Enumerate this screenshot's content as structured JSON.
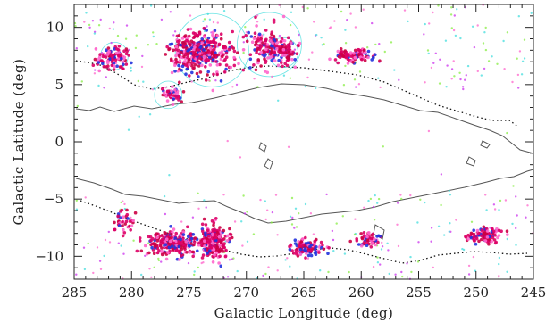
{
  "chart_data": {
    "type": "scatter",
    "title": "",
    "xlabel": "Galactic Longitude (deg)",
    "ylabel": "Galactic Latitude (deg)",
    "xlim": [
      285,
      245
    ],
    "ylim": [
      -12,
      12
    ],
    "x_ticks": [
      "285",
      "280",
      "275",
      "270",
      "265",
      "260",
      "255",
      "250",
      "245"
    ],
    "y_ticks": [
      "10",
      "5",
      "0",
      "−5",
      "−10"
    ],
    "grid": false,
    "legend": "none",
    "colors": {
      "dense_a": "#dd0066",
      "dense_b": "#cc0044",
      "dense_c": "#2233dd",
      "sparse_a": "#cc33ee",
      "sparse_b": "#88ee44",
      "sparse_c": "#44dddd",
      "sparse_d": "#ff66cc",
      "contour": "#555555",
      "circle": "#44dddd"
    },
    "clusters": [
      {
        "center": [
          281.5,
          7.3
        ],
        "spread": [
          1.2,
          1.0
        ],
        "count": 110
      },
      {
        "center": [
          276.5,
          4.2
        ],
        "spread": [
          0.9,
          0.6
        ],
        "count": 45
      },
      {
        "center": [
          274.0,
          7.8
        ],
        "spread": [
          2.4,
          1.6
        ],
        "count": 380
      },
      {
        "center": [
          268.0,
          8.2
        ],
        "spread": [
          1.8,
          1.5
        ],
        "count": 160
      },
      {
        "center": [
          266.5,
          7.8
        ],
        "spread": [
          0.6,
          0.9
        ],
        "count": 60
      },
      {
        "center": [
          260.5,
          7.5
        ],
        "spread": [
          1.5,
          0.5
        ],
        "count": 110
      },
      {
        "center": [
          280.8,
          -7.0
        ],
        "spread": [
          0.8,
          0.9
        ],
        "count": 40
      },
      {
        "center": [
          276.5,
          -8.8
        ],
        "spread": [
          2.0,
          1.0
        ],
        "count": 260
      },
      {
        "center": [
          272.8,
          -8.7
        ],
        "spread": [
          1.0,
          1.3
        ],
        "count": 220
      },
      {
        "center": [
          264.8,
          -9.3
        ],
        "spread": [
          1.4,
          0.7
        ],
        "count": 110
      },
      {
        "center": [
          259.3,
          -8.5
        ],
        "spread": [
          0.9,
          0.6
        ],
        "count": 55
      },
      {
        "center": [
          249.3,
          -8.2
        ],
        "spread": [
          1.2,
          0.6
        ],
        "count": 120
      }
    ],
    "circles": [
      {
        "center": [
          273.0,
          8.0
        ],
        "radius": 3.2
      },
      {
        "center": [
          268.0,
          8.5
        ],
        "radius": 2.8
      },
      {
        "center": [
          266.8,
          7.8
        ],
        "radius": 1.3
      },
      {
        "center": [
          276.8,
          4.1
        ],
        "radius": 1.2
      },
      {
        "center": [
          281.5,
          7.5
        ],
        "radius": 1.2
      }
    ]
  }
}
